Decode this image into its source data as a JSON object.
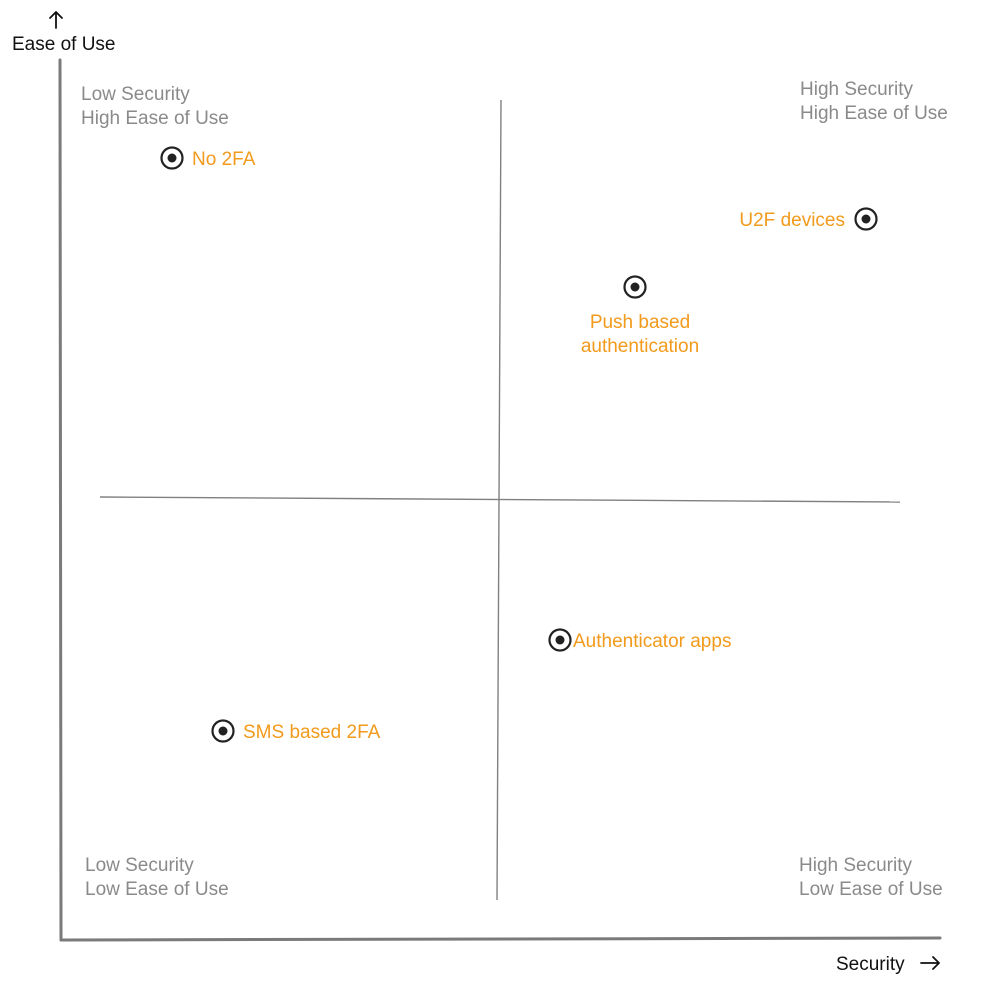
{
  "axes": {
    "y_label": "Ease of Use",
    "x_label": "Security"
  },
  "quadrants": {
    "top_left": {
      "line1": "Low Security",
      "line2": "High Ease of Use"
    },
    "top_right": {
      "line1": "High Security",
      "line2": "High Ease of Use"
    },
    "bottom_left": {
      "line1": "Low Security",
      "line2": "Low Ease of Use"
    },
    "bottom_right": {
      "line1": "High Security",
      "line2": "Low Ease of Use"
    }
  },
  "items": {
    "no_2fa": {
      "label": "No 2FA"
    },
    "u2f_devices": {
      "label": "U2F devices"
    },
    "push_auth": {
      "line1": "Push based",
      "line2": "authentication"
    },
    "authenticator_apps": {
      "label": "Authenticator apps"
    },
    "sms_2fa": {
      "label": "SMS based 2FA"
    }
  },
  "colors": {
    "item_label": "#F29A1B",
    "quadrant_label": "#8A8A8A",
    "axis": "#7A7A7A",
    "marker": "#222222"
  }
}
